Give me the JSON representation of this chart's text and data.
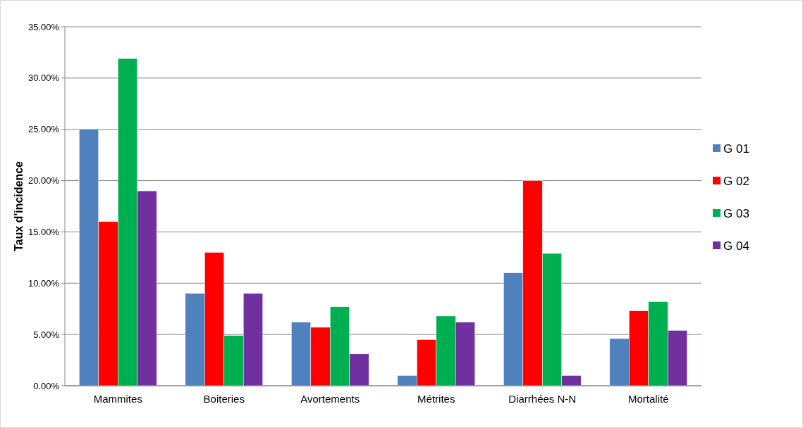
{
  "chart_data": {
    "type": "bar",
    "ylabel": "Taux d'incidence",
    "categories": [
      "Mammites",
      "Boiteries",
      "Avortements",
      "Métrites",
      "Diarrhées N-N",
      "Mortalité"
    ],
    "series": [
      {
        "name": "G 01",
        "color": "#4f81bd",
        "values": [
          25,
          9,
          6.2,
          1.0,
          11,
          4.6
        ]
      },
      {
        "name": "G 02",
        "color": "#ff0000",
        "values": [
          16,
          13,
          5.7,
          4.5,
          20,
          7.3
        ]
      },
      {
        "name": "G 03",
        "color": "#00b050",
        "values": [
          31.9,
          4.9,
          7.7,
          6.8,
          12.9,
          8.2
        ]
      },
      {
        "name": "G 04",
        "color": "#7030a0",
        "values": [
          19,
          9,
          3.1,
          6.2,
          1.0,
          5.4
        ]
      }
    ],
    "ylim": [
      0,
      35
    ],
    "yticks": [
      {
        "value": 0,
        "label": "0.00%"
      },
      {
        "value": 5,
        "label": "5.00%"
      },
      {
        "value": 10,
        "label": "10.00%"
      },
      {
        "value": 15,
        "label": "15.00%"
      },
      {
        "value": 20,
        "label": "20.00%"
      },
      {
        "value": 25,
        "label": "25.00%"
      },
      {
        "value": 30,
        "label": "30.00%"
      },
      {
        "value": 35,
        "label": "35.00%"
      }
    ],
    "grid": "y",
    "legend": "right"
  }
}
